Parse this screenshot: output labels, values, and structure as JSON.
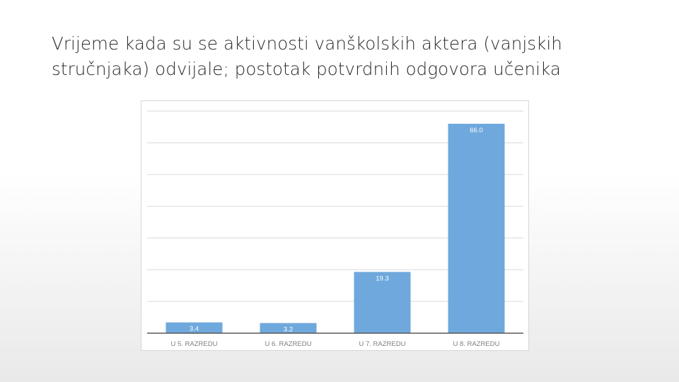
{
  "slide": {
    "title": "Vrijeme kada su se aktivnosti vanškolskih aktera (vanjskih stručnjaka) odvijale; postotak potvrdnih odgovora učenika"
  },
  "chart_data": {
    "type": "bar",
    "categories": [
      "U 5. RAZREDU",
      "U 6. RAZREDU",
      "U 7. RAZREDU",
      "U 8. RAZREDU"
    ],
    "values": [
      3.4,
      3.2,
      19.3,
      66.0
    ],
    "data_labels": [
      "3.4",
      "3.2",
      "19.3",
      "66.0"
    ],
    "title": "",
    "xlabel": "",
    "ylabel": "",
    "ylim": [
      0,
      70
    ],
    "grid": true,
    "legend": "none",
    "colors": {
      "bar": "#6fa8dc",
      "gridline": "#d9d9d9",
      "axis": "#595959",
      "label_inside": "#ffffff",
      "category_label": "#7f7f7f"
    }
  }
}
